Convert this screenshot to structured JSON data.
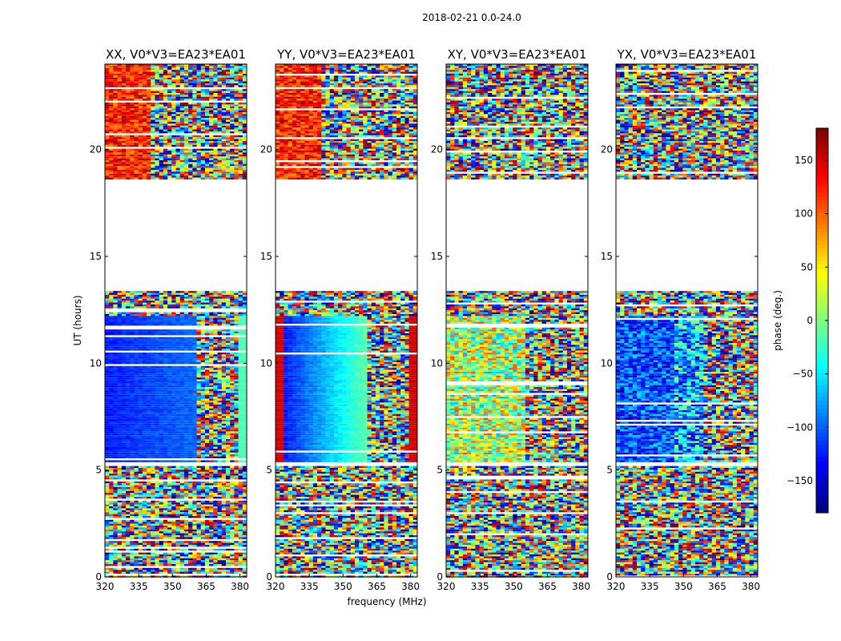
{
  "suptitle": "2018-02-21 0.0-24.0",
  "chart_data": {
    "type": "heatmap",
    "xlabel": "frequency (MHz)",
    "ylabel": "UT (hours)",
    "xlim": [
      320,
      383
    ],
    "ylim": [
      0,
      24
    ],
    "xticks": [
      320,
      335,
      350,
      365,
      380
    ],
    "yticks": [
      0,
      5,
      10,
      15,
      20
    ],
    "panels": [
      {
        "title": "XX, V0*V3=EA23*EA01",
        "pattern": "parallel_xx"
      },
      {
        "title": "YY, V0*V3=EA23*EA01",
        "pattern": "parallel_yy"
      },
      {
        "title": "XY, V0*V3=EA23*EA01",
        "pattern": "cross_xy"
      },
      {
        "title": "YX, V0*V3=EA23*EA01",
        "pattern": "cross_yx"
      }
    ],
    "colorbar": {
      "label": "phase (deg.)",
      "range": [
        -180,
        180
      ],
      "ticks": [
        -150,
        -100,
        -50,
        0,
        50,
        100,
        150
      ],
      "colormap": "jet"
    },
    "data_gaps_hours": [
      [
        13.4,
        18.6
      ],
      [
        5.2,
        5.4
      ]
    ],
    "segments_hours": {
      "noisy_low": [
        0,
        5.2
      ],
      "coherent": [
        5.4,
        12.3
      ],
      "sparse_mid": [
        12.3,
        13.4
      ],
      "noisy_high": [
        18.6,
        24
      ]
    }
  }
}
